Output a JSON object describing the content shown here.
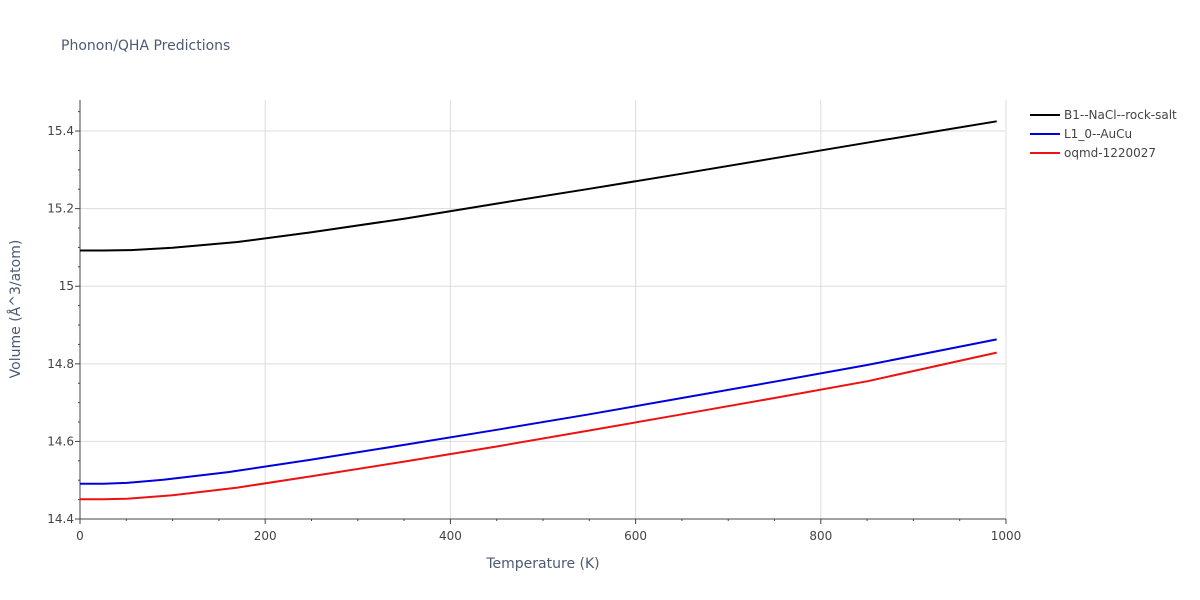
{
  "chart_data": {
    "type": "line",
    "title": "Phonon/QHA Predictions",
    "xlabel": "Temperature (K)",
    "ylabel": "Volume (Å^3/atom)",
    "xlim": [
      0,
      1000
    ],
    "ylim": [
      14.4,
      15.48
    ],
    "xticks": [
      0,
      200,
      400,
      600,
      800,
      1000
    ],
    "xtick_labels": [
      "0",
      "200",
      "400",
      "600",
      "800",
      "1000"
    ],
    "yticks": [
      14.4,
      14.6,
      14.8,
      15.0,
      15.2,
      15.4
    ],
    "ytick_labels": [
      "14.4",
      "14.6",
      "14.8",
      "15",
      "15.2",
      "15.4"
    ],
    "grid": true,
    "legend_position": "top-right",
    "series": [
      {
        "name": "B1--NaCl--rock-salt",
        "color": "#000000",
        "x": [
          0,
          25,
          55,
          100,
          170,
          250,
          350,
          450,
          550,
          650,
          750,
          850,
          990
        ],
        "y": [
          15.092,
          15.092,
          15.093,
          15.099,
          15.114,
          15.139,
          15.174,
          15.213,
          15.251,
          15.29,
          15.33,
          15.37,
          15.425
        ]
      },
      {
        "name": "L1_0--AuCu",
        "color": "#0000dd",
        "x": [
          0,
          25,
          50,
          90,
          160,
          250,
          350,
          450,
          550,
          650,
          750,
          850,
          990
        ],
        "y": [
          14.491,
          14.491,
          14.493,
          14.501,
          14.521,
          14.553,
          14.591,
          14.63,
          14.67,
          14.712,
          14.754,
          14.797,
          14.863
        ]
      },
      {
        "name": "oqmd-1220027",
        "color": "#ee1111",
        "x": [
          0,
          25,
          50,
          100,
          170,
          250,
          350,
          450,
          550,
          650,
          750,
          850,
          990
        ],
        "y": [
          14.451,
          14.451,
          14.452,
          14.461,
          14.481,
          14.51,
          14.548,
          14.587,
          14.628,
          14.67,
          14.712,
          14.755,
          14.829
        ]
      }
    ]
  }
}
